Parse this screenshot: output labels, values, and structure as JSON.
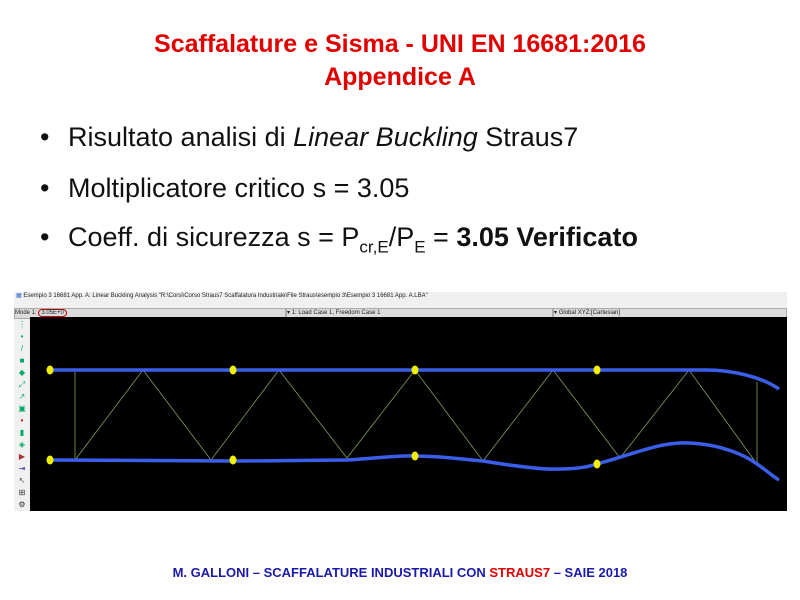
{
  "slide": {
    "title_line1": "Scaffalature e Sisma - UNI EN 16681:2016",
    "title_line2": "Appendice A",
    "bullets": [
      {
        "text": "Risultato analisi di ",
        "italic": "Linear Buckling",
        "after": " Straus7"
      },
      {
        "text": "Moltiplicatore critico s = 3.05"
      },
      {
        "text": "Coeff. di sicurezza s =  P",
        "sub1": "cr,E",
        "mid": "/P",
        "sub2": "E",
        "eq": " = ",
        "bold": "3.05 Verificato"
      }
    ],
    "footer": {
      "part1": "M. GALLONI – SCAFFALATURE INDUSTRIALI  CON ",
      "part2": "STRAUS7",
      "part3": " – SAIE 2018"
    }
  },
  "app": {
    "window_title": "Esempio 3 16681 App. A: Linear Buckling Analysis \"R:\\Corsi\\Corso Straus7 Scaffalatura Industriale\\File Straus\\esempio 3\\Esempio 3 16681 App. A.LBA\"",
    "mode_label": "Mode 1:",
    "mode_value": "3.05E+0",
    "load_case": "1: Load Case 1, Freedom Case 1",
    "coord_system": "Global XYZ:[Cartesian]"
  },
  "colors": {
    "title": "#e00000",
    "footer": "#1a1aa8",
    "chord": "#3a5ee8",
    "brace": "#7fa060",
    "node": "#f0f000"
  }
}
